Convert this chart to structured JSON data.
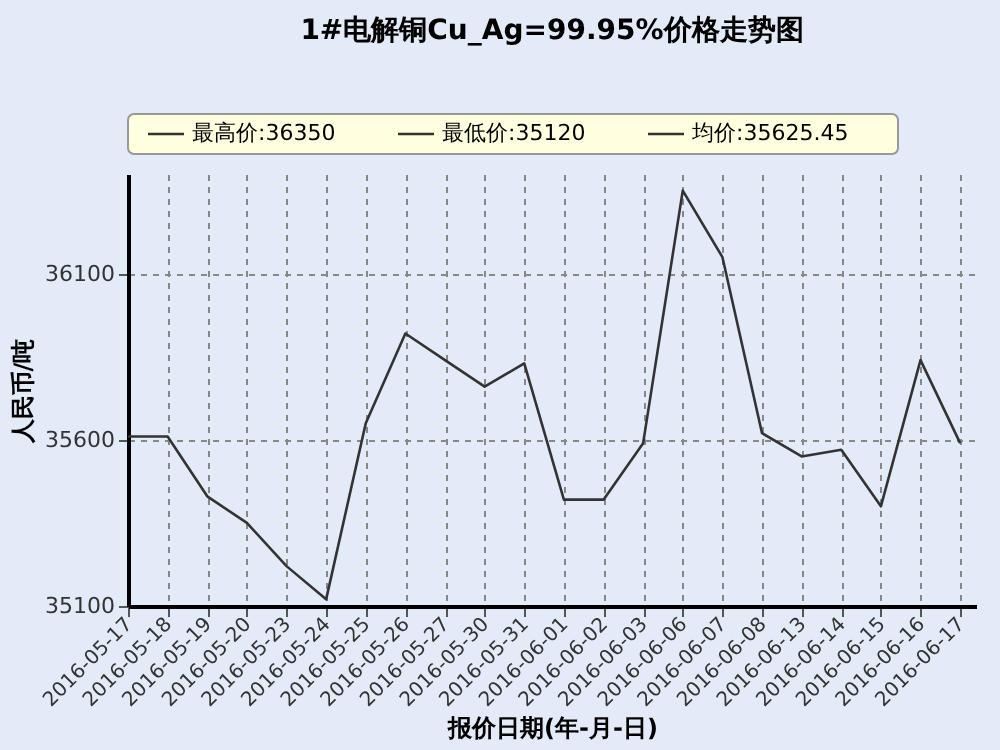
{
  "chart_data": {
    "type": "line",
    "title": "1#电解铜Cu_Ag=99.95%价格走势图",
    "xlabel": "报价日期(年-月-日)",
    "ylabel": "人民币/吨",
    "annotations": [
      "最高价:36350",
      "最低价:35120",
      "均价:35625.45"
    ],
    "categories": [
      "2016-05-17",
      "2016-05-18",
      "2016-05-19",
      "2016-05-20",
      "2016-05-23",
      "2016-05-24",
      "2016-05-25",
      "2016-05-26",
      "2016-05-27",
      "2016-05-30",
      "2016-05-31",
      "2016-06-01",
      "2016-06-02",
      "2016-06-03",
      "2016-06-06",
      "2016-06-07",
      "2016-06-08",
      "2016-06-13",
      "2016-06-14",
      "2016-06-15",
      "2016-06-16",
      "2016-06-17"
    ],
    "series": [
      {
        "color": "#333333",
        "values": [
          35610,
          35610,
          35430,
          35350,
          35220,
          35120,
          35650,
          35920,
          35840,
          35760,
          35830,
          35420,
          35420,
          35590,
          36350,
          36150,
          35620,
          35550,
          35570,
          35400,
          35840,
          35590
        ]
      }
    ],
    "ylim": [
      35100,
      36400
    ],
    "yticks": [
      35100,
      35600,
      36100
    ],
    "grid": true,
    "line_style": "solid",
    "marker": "none"
  }
}
